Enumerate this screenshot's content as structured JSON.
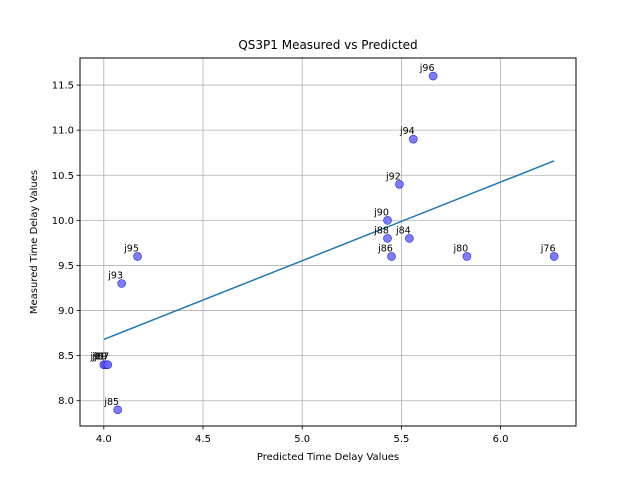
{
  "chart_data": {
    "type": "scatter",
    "title": "QS3P1 Measured vs Predicted",
    "xlabel": "Predicted Time Delay Values",
    "ylabel": "Measured Time Delay Values",
    "xlim": [
      3.88,
      6.38
    ],
    "ylim": [
      7.72,
      11.8
    ],
    "xticks": [
      4.0,
      4.5,
      5.0,
      5.5,
      6.0
    ],
    "yticks": [
      8.0,
      8.5,
      9.0,
      9.5,
      10.0,
      10.5,
      11.0,
      11.5
    ],
    "grid": true,
    "points": [
      {
        "label": "j96",
        "x": 5.66,
        "y": 11.6
      },
      {
        "label": "j94",
        "x": 5.56,
        "y": 10.9
      },
      {
        "label": "j92",
        "x": 5.49,
        "y": 10.4
      },
      {
        "label": "j90",
        "x": 5.43,
        "y": 10.0
      },
      {
        "label": "j88",
        "x": 5.43,
        "y": 9.8
      },
      {
        "label": "j84",
        "x": 5.54,
        "y": 9.8
      },
      {
        "label": "j86",
        "x": 5.45,
        "y": 9.6
      },
      {
        "label": "j80",
        "x": 5.83,
        "y": 9.6
      },
      {
        "label": "j76",
        "x": 6.27,
        "y": 9.6
      },
      {
        "label": "j95",
        "x": 4.17,
        "y": 9.6
      },
      {
        "label": "j93",
        "x": 4.09,
        "y": 9.3
      },
      {
        "label": "j91",
        "x": 4.0,
        "y": 8.4
      },
      {
        "label": "j89",
        "x": 4.01,
        "y": 8.4
      },
      {
        "label": "j87",
        "x": 4.02,
        "y": 8.4
      },
      {
        "label": "j85",
        "x": 4.07,
        "y": 7.9
      }
    ],
    "trendline": {
      "x": [
        4.0,
        6.27
      ],
      "y": [
        8.68,
        10.66
      ]
    },
    "colors": {
      "points": "#6666ff",
      "point_edge": "#0000cc",
      "trendline": "#1f77b4",
      "grid": "#b0b0b0"
    }
  }
}
